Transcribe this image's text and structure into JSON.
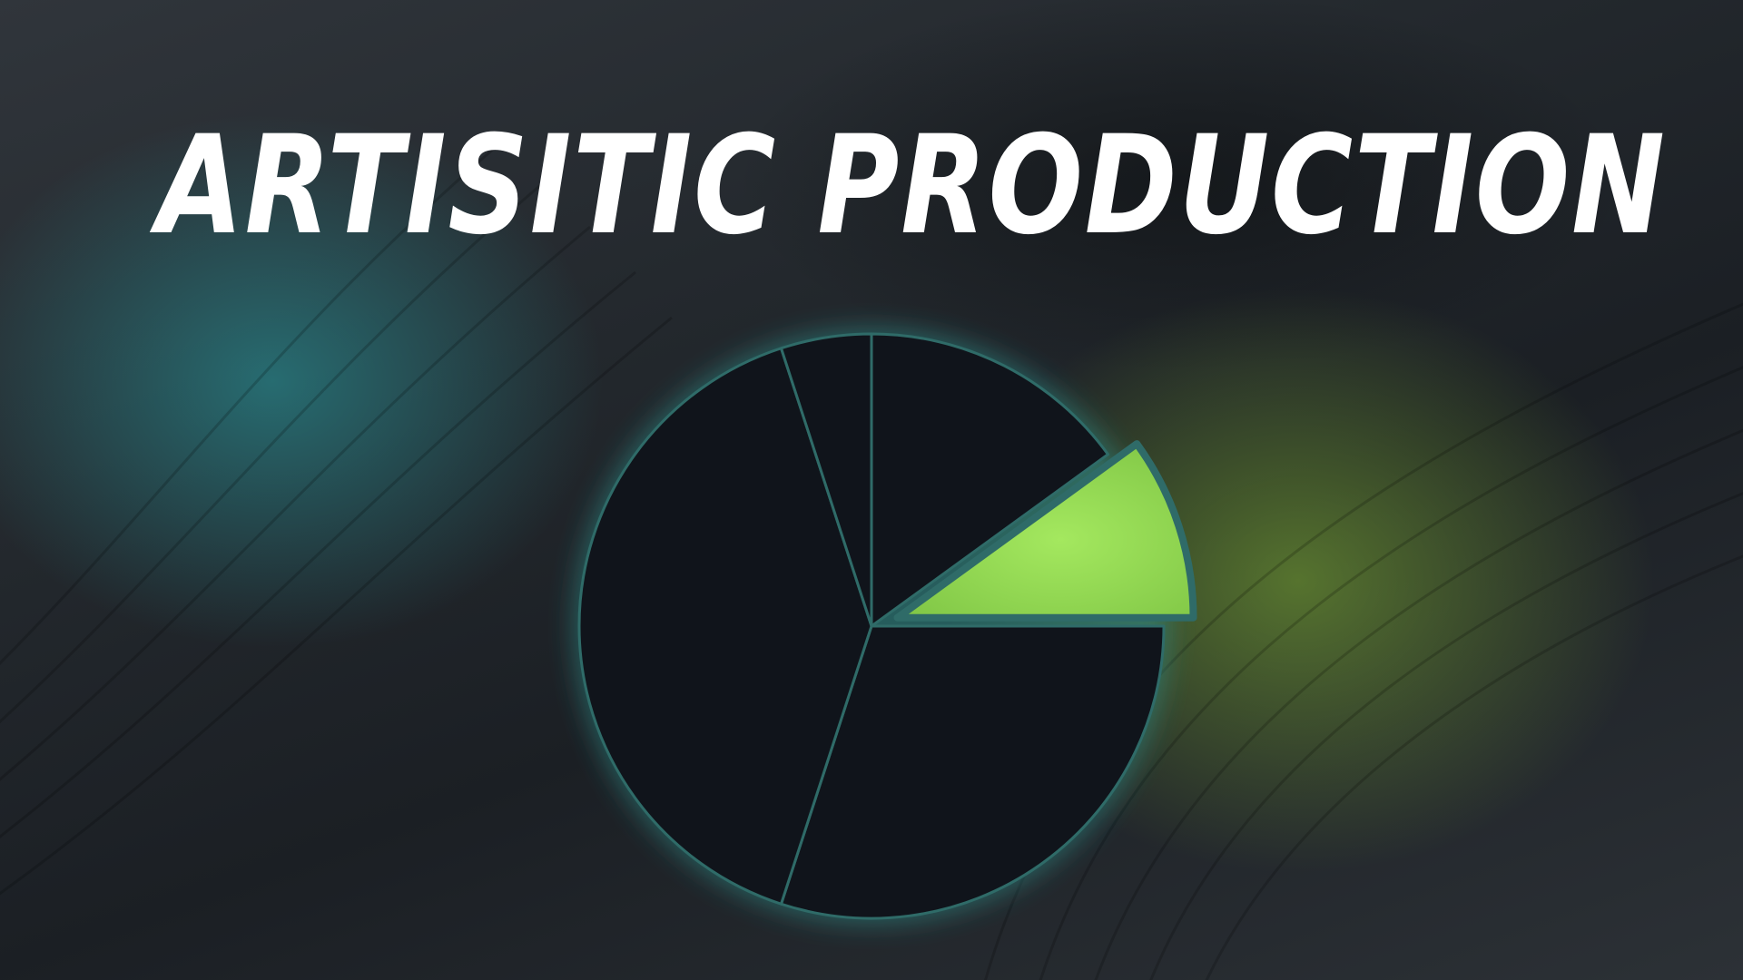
{
  "title": "ARTISITIC PRODUCTION",
  "chart_data": {
    "type": "pie",
    "title": "ARTISITIC PRODUCTION",
    "slices": [
      {
        "value": 15,
        "color": "#10141b",
        "highlight": false
      },
      {
        "value": 10,
        "color": "#9fe25d",
        "highlight": true
      },
      {
        "value": 30,
        "color": "#10141b",
        "highlight": false
      },
      {
        "value": 40,
        "color": "#10141b",
        "highlight": false
      },
      {
        "value": 5,
        "color": "#10141b",
        "highlight": false
      }
    ],
    "start_angle_deg": -90,
    "direction": "clockwise"
  },
  "colors": {
    "background": "#23282d",
    "teal_glow": "#2a8387",
    "green_glow": "#6e9632",
    "pie_fill": "#10141b",
    "separator": "#2f6b68",
    "highlight": "#9fe25d"
  }
}
